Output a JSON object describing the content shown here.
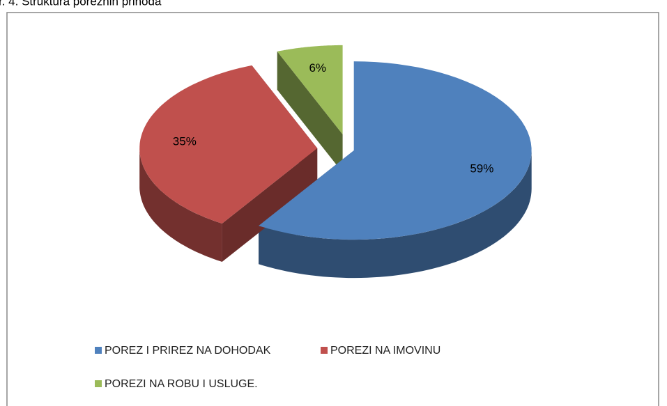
{
  "chart_data": {
    "type": "pie",
    "title": "r. 4. Struktura poreznih prihoda",
    "categories": [
      "POREZ I PRIREZ NA DOHODAK",
      "POREZI NA IMOVINU",
      "POREZI NA ROBU I USLUGE."
    ],
    "values": [
      59,
      35,
      6
    ],
    "value_labels": [
      "59%",
      "35%",
      "6%"
    ],
    "colors": [
      "#4f81bd",
      "#c0504d",
      "#9bbb59"
    ]
  }
}
